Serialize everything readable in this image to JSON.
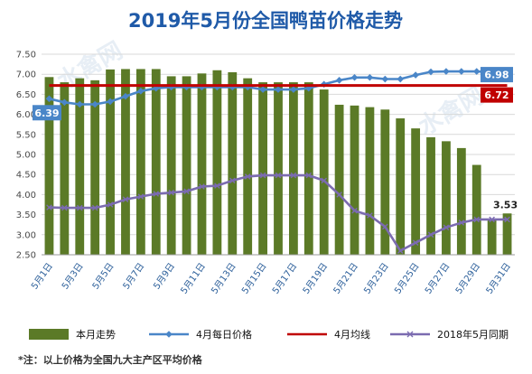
{
  "chart_data": {
    "type": "bar",
    "title": "2019年5月份全国鸭苗价格走势",
    "categories": [
      "5月1日",
      "5月2日",
      "5月3日",
      "5月4日",
      "5月5日",
      "5月6日",
      "5月7日",
      "5月8日",
      "5月9日",
      "5月10日",
      "5月11日",
      "5月12日",
      "5月13日",
      "5月14日",
      "5月15日",
      "5月16日",
      "5月17日",
      "5月18日",
      "5月19日",
      "5月20日",
      "5月21日",
      "5月22日",
      "5月23日",
      "5月24日",
      "5月25日",
      "5月26日",
      "5月27日",
      "5月28日",
      "5月29日",
      "5月30日",
      "5月31日"
    ],
    "x_tick_labels": [
      "5月1日",
      "5月3日",
      "5月5日",
      "5月7日",
      "5月9日",
      "5月11日",
      "5月13日",
      "5月15日",
      "5月17日",
      "5月19日",
      "5月21日",
      "5月23日",
      "5月25日",
      "5月27日",
      "5月29日",
      "5月31日"
    ],
    "ylim": [
      2.5,
      7.5
    ],
    "yticks": [
      "2.50",
      "3.00",
      "3.50",
      "4.00",
      "4.50",
      "5.00",
      "5.50",
      "6.00",
      "6.50",
      "7.00",
      "7.50"
    ],
    "grid": true,
    "legend_position": "bottom",
    "series": [
      {
        "name": "本月走势",
        "kind": "bar",
        "color": "#5b7a27",
        "values": [
          6.93,
          6.8,
          6.9,
          6.85,
          7.12,
          7.13,
          7.13,
          7.13,
          6.95,
          6.95,
          7.02,
          7.1,
          7.05,
          6.9,
          6.8,
          6.8,
          6.8,
          6.8,
          6.62,
          6.24,
          6.22,
          6.18,
          6.12,
          5.9,
          5.65,
          5.43,
          5.33,
          5.16,
          4.74,
          3.4,
          3.53
        ]
      },
      {
        "name": "4月每日价格",
        "kind": "line",
        "color": "#4a86c8",
        "values": [
          6.39,
          6.3,
          6.25,
          6.25,
          6.32,
          6.45,
          6.58,
          6.65,
          6.68,
          6.68,
          6.68,
          6.68,
          6.68,
          6.68,
          6.62,
          6.62,
          6.62,
          6.65,
          6.75,
          6.85,
          6.92,
          6.92,
          6.88,
          6.88,
          6.98,
          7.06,
          7.07,
          7.07,
          7.07,
          7.05,
          6.98
        ]
      },
      {
        "name": "4月均线",
        "kind": "line",
        "color": "#c00000",
        "values": [
          6.72,
          6.72,
          6.72,
          6.72,
          6.72,
          6.72,
          6.72,
          6.72,
          6.72,
          6.72,
          6.72,
          6.72,
          6.72,
          6.72,
          6.72,
          6.72,
          6.72,
          6.72,
          6.72,
          6.72,
          6.72,
          6.72,
          6.72,
          6.72,
          6.72,
          6.72,
          6.72,
          6.72,
          6.72,
          6.72,
          6.72
        ]
      },
      {
        "name": "2018年5月同期",
        "kind": "line",
        "color": "#7b6bb0",
        "values": [
          3.68,
          3.67,
          3.67,
          3.67,
          3.75,
          3.88,
          3.95,
          4.02,
          4.05,
          4.08,
          4.2,
          4.22,
          4.35,
          4.45,
          4.48,
          4.48,
          4.48,
          4.48,
          4.35,
          4.0,
          3.6,
          3.48,
          3.2,
          2.6,
          2.8,
          3.0,
          3.18,
          3.3,
          3.38,
          3.38,
          3.38
        ]
      }
    ],
    "labels": {
      "start_line": "6.39",
      "end_line": "6.98",
      "avg_line": "6.72",
      "end_bar": "3.53"
    }
  },
  "watermark": "水禽网",
  "note": "*注：以上价格为全国九大主产区平均价格"
}
